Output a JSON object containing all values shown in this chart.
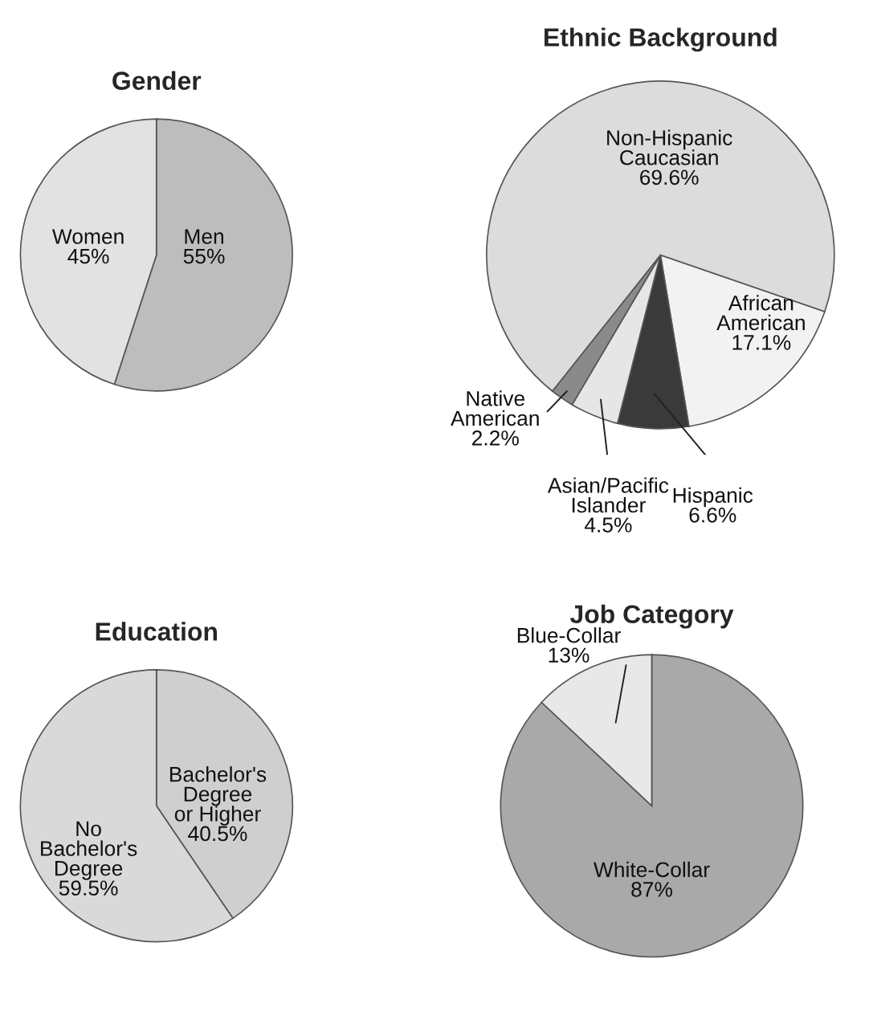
{
  "chart_data": [
    {
      "type": "pie",
      "title": "Gender",
      "categories": [
        "Men",
        "Women"
      ],
      "values": [
        55,
        45
      ],
      "value_labels": [
        "55%",
        "45%"
      ],
      "colors": [
        "#bdbdbd",
        "#e2e2e2"
      ]
    },
    {
      "type": "pie",
      "title": "Ethnic Background",
      "categories": [
        "African\nAmerican",
        "Hispanic",
        "Asian/Pacific\nIslander",
        "Native\nAmerican",
        "Non-Hispanic\nCaucasian"
      ],
      "values": [
        17.1,
        6.6,
        4.5,
        2.2,
        69.6
      ],
      "value_labels": [
        "17.1%",
        "6.6%",
        "4.5%",
        "2.2%",
        "69.6%"
      ],
      "colors": [
        "#f2f2f2",
        "#3a3a3a",
        "#e6e6e6",
        "#8a8a8a",
        "#dcdcdc"
      ]
    },
    {
      "type": "pie",
      "title": "Education",
      "categories": [
        "Bachelor's\nDegree\nor Higher",
        "No\nBachelor's\nDegree"
      ],
      "values": [
        40.5,
        59.5
      ],
      "value_labels": [
        "40.5%",
        "59.5%"
      ],
      "colors": [
        "#cfcfcf",
        "#d9d9d9"
      ]
    },
    {
      "type": "pie",
      "title": "Job Category",
      "categories": [
        "White-Collar",
        "Blue-Collar"
      ],
      "values": [
        87,
        13
      ],
      "value_labels": [
        "87%",
        "13%"
      ],
      "colors": [
        "#a9a9a9",
        "#e8e8e8"
      ]
    }
  ]
}
